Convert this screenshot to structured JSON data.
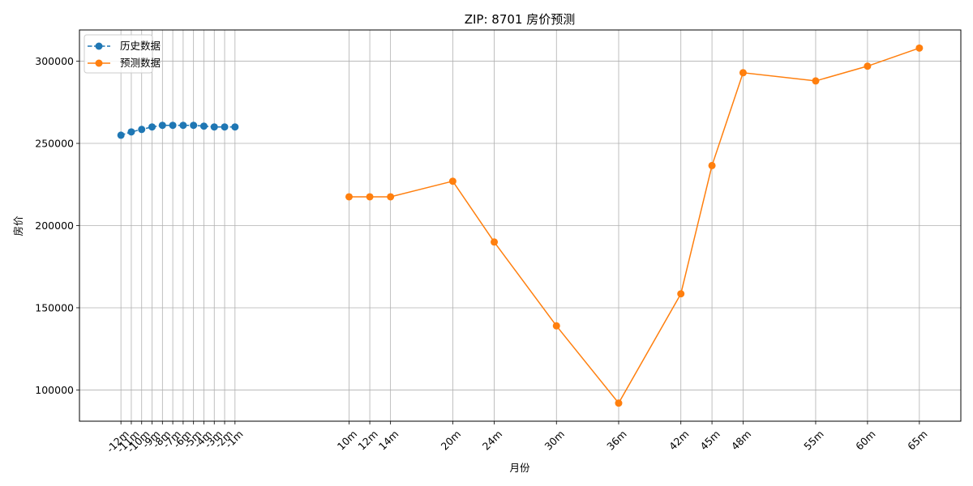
{
  "chart_data": {
    "type": "line",
    "title": "ZIP: 8701 房价预测",
    "xlabel": "月份",
    "ylabel": "房价",
    "x_ticks": [
      -12,
      -11,
      -10,
      -9,
      -8,
      -7,
      -6,
      -5,
      -4,
      -3,
      -2,
      -1,
      10,
      12,
      14,
      20,
      24,
      30,
      36,
      42,
      45,
      48,
      55,
      60,
      65
    ],
    "x_tick_labels": [
      "-12m",
      "-11m",
      "-10m",
      "-9m",
      "-8m",
      "-7m",
      "-6m",
      "-5m",
      "-4m",
      "-3m",
      "-2m",
      "-1m",
      "10m",
      "12m",
      "14m",
      "20m",
      "24m",
      "30m",
      "36m",
      "42m",
      "45m",
      "48m",
      "55m",
      "60m",
      "65m"
    ],
    "xlim": [
      -16,
      69
    ],
    "ylim": [
      81000,
      319000
    ],
    "y_ticks": [
      100000,
      150000,
      200000,
      250000,
      300000
    ],
    "grid": true,
    "legend_position": "top-left",
    "series": [
      {
        "name": "历史数据",
        "color": "#1f77b4",
        "line_style": "dashed",
        "x": [
          -12,
          -11,
          -10,
          -9,
          -8,
          -7,
          -6,
          -5,
          -4,
          -3,
          -2,
          -1
        ],
        "values": [
          255000,
          257000,
          258500,
          260000,
          261000,
          261000,
          261000,
          261000,
          260500,
          260000,
          260000,
          260000
        ]
      },
      {
        "name": "预测数据",
        "color": "#ff7f0e",
        "line_style": "solid",
        "x": [
          10,
          12,
          14,
          20,
          24,
          30,
          36,
          42,
          45,
          48,
          55,
          60,
          65
        ],
        "values": [
          217500,
          217500,
          217500,
          227000,
          190000,
          139000,
          92000,
          158500,
          236500,
          293000,
          288000,
          297000,
          308000
        ]
      }
    ]
  }
}
